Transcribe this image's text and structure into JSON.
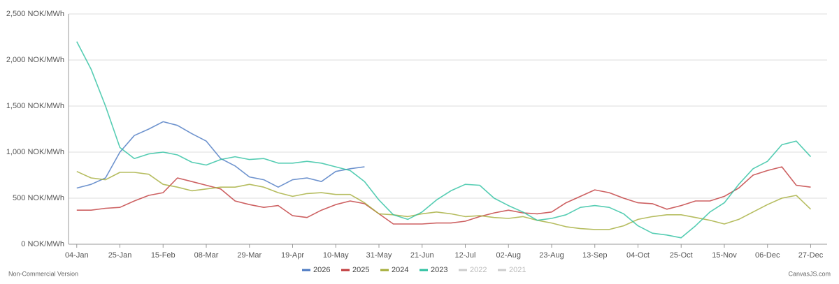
{
  "chart_data": {
    "type": "line",
    "x": [
      4,
      11,
      18,
      25,
      32,
      39,
      46,
      53,
      60,
      67,
      74,
      81,
      88,
      95,
      102,
      109,
      116,
      123,
      130,
      137,
      144,
      151,
      158,
      165,
      172,
      179,
      186,
      193,
      200,
      207,
      214,
      221,
      228,
      235,
      242,
      249,
      256,
      263,
      270,
      277,
      284,
      291,
      298,
      305,
      312,
      319,
      326,
      333,
      340,
      347,
      354,
      361
    ],
    "xlim": [
      0,
      369
    ],
    "xticks": [
      {
        "value": 4,
        "label": "04-Jan"
      },
      {
        "value": 25,
        "label": "25-Jan"
      },
      {
        "value": 46,
        "label": "15-Feb"
      },
      {
        "value": 67,
        "label": "08-Mar"
      },
      {
        "value": 88,
        "label": "29-Mar"
      },
      {
        "value": 109,
        "label": "19-Apr"
      },
      {
        "value": 130,
        "label": "10-May"
      },
      {
        "value": 151,
        "label": "31-May"
      },
      {
        "value": 172,
        "label": "21-Jun"
      },
      {
        "value": 193,
        "label": "12-Jul"
      },
      {
        "value": 214,
        "label": "02-Aug"
      },
      {
        "value": 235,
        "label": "23-Aug"
      },
      {
        "value": 256,
        "label": "13-Sep"
      },
      {
        "value": 277,
        "label": "04-Oct"
      },
      {
        "value": 298,
        "label": "25-Oct"
      },
      {
        "value": 319,
        "label": "15-Nov"
      },
      {
        "value": 340,
        "label": "06-Dec"
      },
      {
        "value": 361,
        "label": "27-Dec"
      }
    ],
    "ylim": [
      0,
      2500
    ],
    "yticks": [
      {
        "value": 0,
        "label": "0 NOK/MWh"
      },
      {
        "value": 500,
        "label": "500 NOK/MWh"
      },
      {
        "value": 1000,
        "label": "1,000 NOK/MWh"
      },
      {
        "value": 1500,
        "label": "1,500 NOK/MWh"
      },
      {
        "value": 2000,
        "label": "2,000 NOK/MWh"
      },
      {
        "value": 2500,
        "label": "2,500 NOK/MWh"
      }
    ],
    "grid": true,
    "series": [
      {
        "name": "2026",
        "color": "#4a78c2",
        "hidden": false,
        "values": [
          610,
          650,
          720,
          1000,
          1180,
          1250,
          1330,
          1290,
          1200,
          1120,
          930,
          850,
          730,
          700,
          620,
          700,
          720,
          680,
          790,
          820,
          840,
          null,
          null,
          null,
          null,
          null,
          null,
          null,
          null,
          null,
          null,
          null,
          null,
          null,
          null,
          null,
          null,
          null,
          null,
          null,
          null,
          null,
          null,
          null,
          null,
          null,
          null,
          null,
          null,
          null,
          null,
          null
        ]
      },
      {
        "name": "2025",
        "color": "#c0393b",
        "hidden": false,
        "values": [
          370,
          370,
          390,
          400,
          470,
          530,
          560,
          720,
          680,
          640,
          600,
          470,
          430,
          400,
          420,
          310,
          290,
          370,
          430,
          470,
          440,
          330,
          220,
          220,
          220,
          230,
          230,
          250,
          300,
          340,
          370,
          340,
          330,
          350,
          450,
          520,
          590,
          560,
          500,
          450,
          440,
          380,
          420,
          470,
          470,
          520,
          610,
          750,
          800,
          840,
          640,
          620
        ]
      },
      {
        "name": "2024",
        "color": "#a4ad38",
        "hidden": false,
        "values": [
          790,
          720,
          700,
          780,
          780,
          760,
          650,
          620,
          580,
          600,
          620,
          620,
          650,
          620,
          560,
          520,
          550,
          560,
          540,
          540,
          450,
          330,
          320,
          300,
          330,
          350,
          330,
          300,
          310,
          290,
          280,
          300,
          260,
          230,
          190,
          170,
          160,
          160,
          200,
          270,
          300,
          320,
          320,
          290,
          260,
          220,
          270,
          350,
          430,
          500,
          530,
          380
        ]
      },
      {
        "name": "2023",
        "color": "#2cc0a0",
        "hidden": false,
        "values": [
          2200,
          1900,
          1500,
          1050,
          930,
          980,
          1000,
          970,
          890,
          860,
          920,
          950,
          920,
          930,
          880,
          880,
          900,
          880,
          840,
          800,
          680,
          480,
          320,
          270,
          350,
          480,
          580,
          650,
          640,
          500,
          420,
          350,
          260,
          280,
          320,
          400,
          420,
          400,
          330,
          200,
          120,
          100,
          70,
          200,
          350,
          450,
          650,
          820,
          900,
          1080,
          1120,
          950
        ]
      },
      {
        "name": "2022",
        "color": "#b5b5b5",
        "hidden": true,
        "values": [
          null,
          null,
          null,
          null,
          null,
          null,
          null,
          null,
          null,
          null,
          null,
          null,
          null,
          null,
          null,
          null,
          null,
          null,
          null,
          null,
          null,
          null,
          null,
          null,
          null,
          null,
          null,
          null,
          null,
          null,
          null,
          null,
          null,
          null,
          null,
          null,
          null,
          null,
          null,
          null,
          null,
          null,
          null,
          null,
          null,
          null,
          null,
          null,
          null,
          null,
          null,
          null
        ]
      },
      {
        "name": "2021",
        "color": "#9adfdc",
        "hidden": true,
        "values": [
          null,
          null,
          null,
          null,
          null,
          null,
          null,
          null,
          null,
          null,
          null,
          null,
          null,
          null,
          null,
          null,
          null,
          null,
          null,
          null,
          null,
          null,
          null,
          null,
          null,
          null,
          null,
          null,
          null,
          null,
          null,
          null,
          null,
          null,
          null,
          null,
          null,
          null,
          null,
          null,
          null,
          null,
          null,
          null,
          null,
          null,
          null,
          null,
          null,
          null,
          null,
          null
        ]
      }
    ],
    "footer_left": "Non-Commercial Version",
    "footer_right": "CanvasJS.com"
  }
}
